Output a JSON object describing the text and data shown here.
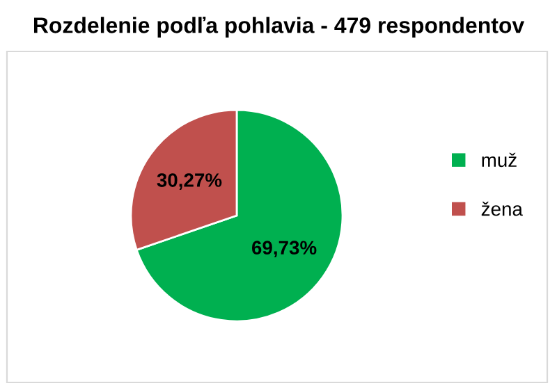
{
  "chart_data": {
    "type": "pie",
    "title": "Rozdelenie podľa pohlavia - 479 respondentov",
    "categories": [
      "muž",
      "žena"
    ],
    "values": [
      69.73,
      30.27
    ],
    "colors": [
      "#00b050",
      "#c0504d"
    ],
    "value_labels": [
      "69,73%",
      "30,27%"
    ],
    "legend": "right"
  }
}
